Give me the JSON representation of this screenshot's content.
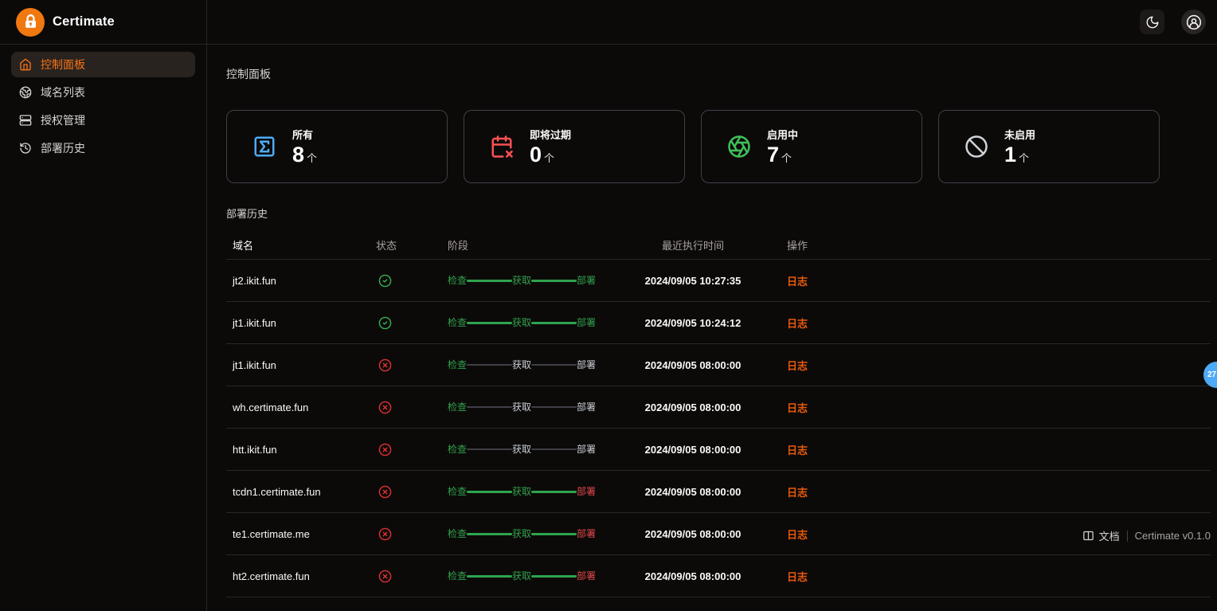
{
  "brand": {
    "name": "Certimate",
    "logo_icon": "lock-icon"
  },
  "topbar": {
    "theme_toggle_icon": "moon-icon",
    "user_menu_icon": "user-circle-icon"
  },
  "sidebar": {
    "items": [
      {
        "id": "dashboard",
        "label": "控制面板",
        "icon": "home-icon",
        "active": true
      },
      {
        "id": "domains",
        "label": "域名列表",
        "icon": "globe-icon",
        "active": false
      },
      {
        "id": "access",
        "label": "授权管理",
        "icon": "server-icon",
        "active": false
      },
      {
        "id": "history",
        "label": "部署历史",
        "icon": "history-icon",
        "active": false
      }
    ]
  },
  "page": {
    "title": "控制面板"
  },
  "stats": [
    {
      "id": "all",
      "label": "所有",
      "value": "8",
      "unit": "个",
      "icon": "sigma-square-icon",
      "color": "#4dabf7"
    },
    {
      "id": "expiring",
      "label": "即将过期",
      "value": "0",
      "unit": "个",
      "icon": "calendar-x-icon",
      "color": "#fa5252"
    },
    {
      "id": "enabled",
      "label": "启用中",
      "value": "7",
      "unit": "个",
      "icon": "aperture-icon",
      "color": "#40c057"
    },
    {
      "id": "disabled",
      "label": "未启用",
      "value": "1",
      "unit": "个",
      "icon": "ban-icon",
      "color": "#ced4da"
    }
  ],
  "history_section": {
    "title": "部署历史"
  },
  "table": {
    "columns": {
      "domain": "域名",
      "status": "状态",
      "stage": "阶段",
      "time": "最近执行时间",
      "action": "操作"
    },
    "stage_labels": [
      "检查",
      "获取",
      "部署"
    ],
    "action_label": "日志",
    "rows": [
      {
        "domain": "jt2.ikit.fun",
        "status": "success",
        "stage_states": [
          "done",
          "done",
          "done"
        ],
        "time": "2024/09/05 10:27:35"
      },
      {
        "domain": "jt1.ikit.fun",
        "status": "success",
        "stage_states": [
          "done",
          "done",
          "done"
        ],
        "time": "2024/09/05 10:24:12"
      },
      {
        "domain": "jt1.ikit.fun",
        "status": "failed",
        "stage_states": [
          "done",
          "pending",
          "pending"
        ],
        "time": "2024/09/05 08:00:00"
      },
      {
        "domain": "wh.certimate.fun",
        "status": "failed",
        "stage_states": [
          "done",
          "pending",
          "pending"
        ],
        "time": "2024/09/05 08:00:00"
      },
      {
        "domain": "htt.ikit.fun",
        "status": "failed",
        "stage_states": [
          "done",
          "pending",
          "pending"
        ],
        "time": "2024/09/05 08:00:00"
      },
      {
        "domain": "tcdn1.certimate.fun",
        "status": "failed",
        "stage_states": [
          "done",
          "done",
          "failed"
        ],
        "time": "2024/09/05 08:00:00"
      },
      {
        "domain": "te1.certimate.me",
        "status": "failed",
        "stage_states": [
          "done",
          "done",
          "failed"
        ],
        "time": "2024/09/05 08:00:00"
      },
      {
        "domain": "ht2.certimate.fun",
        "status": "failed",
        "stage_states": [
          "done",
          "done",
          "failed"
        ],
        "time": "2024/09/05 08:00:00"
      }
    ],
    "status_icons": {
      "success": "check-circle-icon",
      "failed": "x-circle-icon"
    }
  },
  "footer": {
    "docs_icon": "book-icon",
    "docs_label": "文档",
    "version": "Certimate v0.1.0"
  },
  "floating_badge": {
    "value": "27",
    "color": "#4dabf7"
  },
  "colors": {
    "accent_orange": "#f97316",
    "link_orange": "#e8590c",
    "success_green": "#2ea44f",
    "error_red": "#e03131",
    "pending_gray": "#c9cdd4",
    "background": "#0c0a09",
    "border": "#292524"
  }
}
